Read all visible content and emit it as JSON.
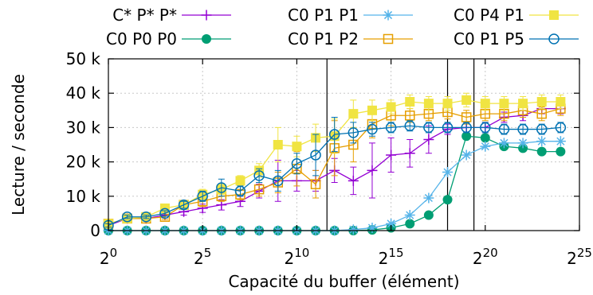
{
  "chart_data": {
    "type": "line",
    "xlabel": "Capacité du buffer (élément)",
    "ylabel": "Lecture / seconde",
    "x_scale": "log2",
    "xlim": [
      0,
      25
    ],
    "ylim": [
      0,
      50000
    ],
    "x_ticks": [
      {
        "base": "2",
        "exp": "0",
        "value": 0
      },
      {
        "base": "2",
        "exp": "5",
        "value": 5
      },
      {
        "base": "2",
        "exp": "10",
        "value": 10
      },
      {
        "base": "2",
        "exp": "15",
        "value": 15
      },
      {
        "base": "2",
        "exp": "20",
        "value": 20
      },
      {
        "base": "2",
        "exp": "25",
        "value": 25
      }
    ],
    "y_ticks": [
      {
        "label": "0",
        "value": 0
      },
      {
        "label": "10 k",
        "value": 10000
      },
      {
        "label": "20 k",
        "value": 20000
      },
      {
        "label": "30 k",
        "value": 30000
      },
      {
        "label": "40 k",
        "value": 40000
      },
      {
        "label": "50 k",
        "value": 50000
      }
    ],
    "vertical_lines": [
      11.6,
      18,
      19.4
    ],
    "legend_position": "top",
    "series": [
      {
        "name": "C* P* P*",
        "color": "#9400d3",
        "marker": "plus",
        "x": [
          0,
          1,
          2,
          3,
          4,
          5,
          6,
          7,
          8,
          9,
          10,
          11,
          12,
          13,
          14,
          15,
          16,
          17,
          18,
          19,
          20,
          21,
          22,
          23,
          24
        ],
        "y": [
          1500,
          3500,
          3500,
          4500,
          5500,
          6500,
          7500,
          8500,
          11500,
          14500,
          14500,
          14500,
          17500,
          14500,
          17500,
          22000,
          22500,
          26500,
          29500,
          30000,
          30000,
          33000,
          33500,
          35500,
          35500
        ],
        "err": [
          500,
          500,
          500,
          800,
          1000,
          1200,
          1500,
          1500,
          2000,
          6000,
          3000,
          3000,
          3500,
          4000,
          8000,
          5000,
          4000,
          4000,
          1500,
          1500,
          1500,
          1500,
          1500,
          1500,
          1500
        ]
      },
      {
        "name": "C0 P0 P0",
        "color": "#009e73",
        "marker": "filled-circle",
        "x": [
          0,
          1,
          2,
          3,
          4,
          5,
          6,
          7,
          8,
          9,
          10,
          11,
          12,
          13,
          14,
          15,
          16,
          17,
          18,
          19,
          20,
          21,
          22,
          23,
          24
        ],
        "y": [
          0,
          0,
          0,
          0,
          0,
          0,
          0,
          0,
          0,
          0,
          0,
          0,
          0,
          0,
          200,
          800,
          2000,
          4500,
          9000,
          27500,
          27000,
          24500,
          24000,
          23000,
          23000
        ],
        "err": [
          0,
          0,
          0,
          0,
          0,
          0,
          0,
          0,
          0,
          0,
          0,
          0,
          0,
          0,
          0,
          0,
          0,
          0,
          0,
          0,
          0,
          0,
          0,
          0,
          0
        ]
      },
      {
        "name": "C0 P1 P1",
        "color": "#56b4e9",
        "marker": "star",
        "x": [
          0,
          1,
          2,
          3,
          4,
          5,
          6,
          7,
          8,
          9,
          10,
          11,
          12,
          13,
          14,
          15,
          16,
          17,
          18,
          19,
          20,
          21,
          22,
          23,
          24
        ],
        "y": [
          0,
          0,
          0,
          0,
          0,
          0,
          0,
          0,
          0,
          0,
          0,
          0,
          0,
          300,
          800,
          2000,
          4500,
          9500,
          17000,
          22000,
          24500,
          25500,
          25500,
          26000,
          26000
        ],
        "err": [
          0,
          0,
          0,
          0,
          0,
          0,
          0,
          0,
          0,
          0,
          0,
          0,
          0,
          0,
          0,
          0,
          0,
          0,
          0,
          0,
          0,
          0,
          0,
          0,
          0
        ]
      },
      {
        "name": "C0 P1 P2",
        "color": "#e69f00",
        "marker": "open-square",
        "x": [
          0,
          1,
          2,
          3,
          4,
          5,
          6,
          7,
          8,
          9,
          10,
          11,
          12,
          13,
          14,
          15,
          16,
          17,
          18,
          19,
          20,
          21,
          22,
          23,
          24
        ],
        "y": [
          2000,
          3500,
          3500,
          4000,
          7500,
          8500,
          10000,
          10500,
          12000,
          14000,
          18000,
          13500,
          24000,
          25000,
          31000,
          33500,
          33500,
          34000,
          34500,
          33000,
          34000,
          34000,
          35000,
          34000,
          35500
        ],
        "err": [
          500,
          500,
          500,
          800,
          1000,
          1500,
          1500,
          1500,
          2000,
          3000,
          5000,
          4000,
          8000,
          5000,
          4000,
          3000,
          2000,
          2000,
          2000,
          2000,
          2000,
          2000,
          2000,
          2000,
          2000
        ]
      },
      {
        "name": "C0 P4 P1",
        "color": "#f0e442",
        "marker": "filled-square",
        "x": [
          0,
          1,
          2,
          3,
          4,
          5,
          6,
          7,
          8,
          9,
          10,
          11,
          12,
          13,
          14,
          15,
          16,
          17,
          18,
          19,
          20,
          21,
          22,
          23,
          24
        ],
        "y": [
          2000,
          3500,
          4000,
          6500,
          7500,
          10500,
          12000,
          14500,
          17500,
          25000,
          24500,
          27000,
          27500,
          34000,
          35000,
          36000,
          37500,
          37000,
          37000,
          38000,
          37000,
          37000,
          37000,
          37500,
          37500
        ],
        "err": [
          500,
          500,
          500,
          800,
          1000,
          1500,
          1500,
          1500,
          2000,
          5000,
          3000,
          4000,
          5000,
          4000,
          3000,
          2000,
          2000,
          2000,
          2000,
          2000,
          2000,
          2000,
          2000,
          2000,
          2000
        ]
      },
      {
        "name": "C0 P1 P5",
        "color": "#0072b2",
        "marker": "open-circle",
        "x": [
          0,
          1,
          2,
          3,
          4,
          5,
          6,
          7,
          8,
          9,
          10,
          11,
          12,
          13,
          14,
          15,
          16,
          17,
          18,
          19,
          20,
          21,
          22,
          23,
          24
        ],
        "y": [
          1500,
          4000,
          4000,
          5000,
          7500,
          10000,
          12500,
          11500,
          16000,
          14500,
          19500,
          22000,
          28000,
          28500,
          29500,
          30000,
          30500,
          30000,
          30000,
          30000,
          30000,
          29500,
          29500,
          29500,
          30000
        ],
        "err": [
          500,
          500,
          500,
          800,
          1000,
          1500,
          2500,
          1500,
          2000,
          3000,
          3000,
          6000,
          5000,
          3000,
          2000,
          1500,
          1500,
          1500,
          1500,
          1500,
          1500,
          1500,
          1500,
          1500,
          1500
        ]
      }
    ]
  }
}
